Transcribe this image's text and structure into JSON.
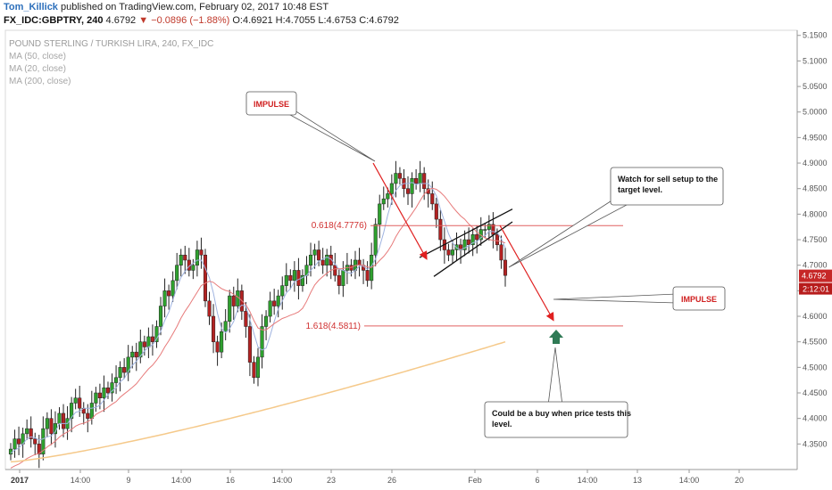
{
  "header": {
    "author": "Tom_Killick",
    "published": "published on TradingView.com, February 02, 2017 10:48 EST",
    "symbol": "FX_IDC:GBPTRY, 240",
    "last": "4.6792",
    "change": "−0.0896 (−1.88%)",
    "ohlc": "O:4.6921  H:4.7055  L:4.6753  C:4.6792"
  },
  "legend": {
    "title": "POUND STERLING / TURKISH LIRA, 240, FX_IDC",
    "ma50": "MA (50, close)",
    "ma20": "MA (20, close)",
    "ma200": "MA (200, close)"
  },
  "colors": {
    "up": "#2ea12e",
    "down": "#b22222",
    "ma20": "#9fb3e0",
    "ma50": "#e77a7a",
    "ma200": "#f5c98a",
    "annot": "#e02020",
    "target": "#2f7a55"
  },
  "chart_data": {
    "type": "candlestick",
    "title": "POUND STERLING / TURKISH LIRA, 240, FX_IDC",
    "ylim": [
      4.3,
      5.16
    ],
    "y_ticks": [
      "5.1500",
      "5.1000",
      "5.0500",
      "5.0000",
      "4.9500",
      "4.9000",
      "4.8500",
      "4.8000",
      "4.7500",
      "4.7000",
      "4.6500",
      "4.6000",
      "4.5500",
      "4.5000",
      "4.4500",
      "4.4000",
      "4.3500"
    ],
    "x_ticks": [
      "2017",
      "14:00",
      "9",
      "14:00",
      "16",
      "14:00",
      "23",
      "26",
      "Feb",
      "6",
      "14:00",
      "13",
      "14:00",
      "20"
    ],
    "last_price": "4.6792",
    "countdown": "2:12:01",
    "closes": [
      4.34,
      4.36,
      4.35,
      4.37,
      4.38,
      4.36,
      4.35,
      4.33,
      4.38,
      4.4,
      4.37,
      4.39,
      4.41,
      4.38,
      4.4,
      4.43,
      4.44,
      4.42,
      4.41,
      4.4,
      4.43,
      4.45,
      4.44,
      4.46,
      4.45,
      4.47,
      4.48,
      4.5,
      4.49,
      4.52,
      4.53,
      4.52,
      4.55,
      4.54,
      4.56,
      4.55,
      4.58,
      4.62,
      4.65,
      4.64,
      4.67,
      4.7,
      4.72,
      4.71,
      4.69,
      4.7,
      4.73,
      4.72,
      4.63,
      4.6,
      4.55,
      4.53,
      4.57,
      4.59,
      4.64,
      4.62,
      4.65,
      4.61,
      4.58,
      4.51,
      4.48,
      4.52,
      4.58,
      4.6,
      4.63,
      4.62,
      4.64,
      4.66,
      4.68,
      4.67,
      4.69,
      4.66,
      4.68,
      4.7,
      4.72,
      4.73,
      4.71,
      4.7,
      4.72,
      4.7,
      4.68,
      4.66,
      4.69,
      4.7,
      4.69,
      4.71,
      4.7,
      4.69,
      4.67,
      4.72,
      4.78,
      4.82,
      4.83,
      4.84,
      4.86,
      4.88,
      4.87,
      4.85,
      4.84,
      4.87,
      4.86,
      4.88,
      4.85,
      4.84,
      4.82,
      4.79,
      4.75,
      4.73,
      4.72,
      4.73,
      4.74,
      4.73,
      4.75,
      4.74,
      4.76,
      4.75,
      4.77,
      4.77,
      4.78,
      4.76,
      4.74,
      4.71,
      4.68
    ],
    "series": [
      {
        "name": "MA (20, close)"
      },
      {
        "name": "MA (50, close)"
      },
      {
        "name": "MA (200, close)"
      }
    ],
    "levels": [
      {
        "label": "0.618(4.7776)",
        "value": 4.7776
      },
      {
        "label": "1.618(4.5811)",
        "value": 4.5811
      }
    ],
    "annotations": {
      "impulse_1": "IMPULSE",
      "impulse_2": "IMPULSE",
      "sell_note": "Watch for sell setup to the target level.",
      "buy_note": "Could be a buy when price tests this level."
    }
  }
}
